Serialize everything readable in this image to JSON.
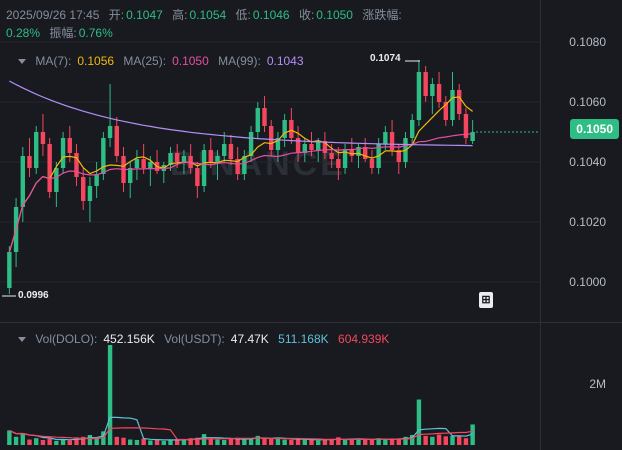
{
  "header": {
    "datetime": "2025/09/26 17:45",
    "open_label": "开:",
    "open": "0.1047",
    "high_label": "高:",
    "high": "0.1054",
    "low_label": "低:",
    "low": "0.1046",
    "close_label": "收:",
    "close": "0.1050",
    "change_label": "涨跌幅:",
    "change": "0.28%",
    "amplitude_label": "振幅:",
    "amplitude": "0.76%"
  },
  "ma": {
    "ma7_label": "MA(7):",
    "ma7": "0.1056",
    "ma25_label": "MA(25):",
    "ma25": "0.1050",
    "ma99_label": "MA(99):",
    "ma99": "0.1043"
  },
  "vol": {
    "dolo_label": "Vol(DOLO):",
    "dolo": "452.156K",
    "usdt_label": "Vol(USDT):",
    "usdt": "47.47K",
    "ma5": "511.168K",
    "ma10": "604.939K",
    "axis_label": "2M"
  },
  "price_axis": [
    "0.1080",
    "0.1060",
    "0.1040",
    "0.1020",
    "0.1000"
  ],
  "current_price": "0.1050",
  "annotations": {
    "high": "0.1074",
    "low": "0.0996"
  },
  "watermark": "BINANCE",
  "colors": {
    "up": "#2ebd85",
    "down": "#f6465d",
    "ma7": "#f0b90b",
    "ma25": "#e64ea3",
    "ma99": "#b58ef8",
    "vol_ma5": "#5dc1d8",
    "vol_ma10": "#f6465d"
  },
  "chart_data": {
    "type": "candlestick",
    "series": [
      {
        "name": "candles",
        "values": [
          [
            0.0998,
            0.1012,
            0.0996,
            0.101
          ],
          [
            0.101,
            0.1028,
            0.1005,
            0.1025
          ],
          [
            0.1025,
            0.1045,
            0.102,
            0.1042
          ],
          [
            0.1042,
            0.1048,
            0.1035,
            0.1038
          ],
          [
            0.1038,
            0.1052,
            0.1036,
            0.105
          ],
          [
            0.105,
            0.1056,
            0.1042,
            0.1046
          ],
          [
            0.1046,
            0.1048,
            0.1028,
            0.103
          ],
          [
            0.103,
            0.104,
            0.1025,
            0.1038
          ],
          [
            0.1038,
            0.105,
            0.1036,
            0.1048
          ],
          [
            0.1048,
            0.1052,
            0.104,
            0.1043
          ],
          [
            0.1043,
            0.1046,
            0.1032,
            0.1035
          ],
          [
            0.1035,
            0.1038,
            0.1024,
            0.1027
          ],
          [
            0.1027,
            0.1035,
            0.102,
            0.1032
          ],
          [
            0.1032,
            0.104,
            0.1028,
            0.1036
          ],
          [
            0.1036,
            0.105,
            0.1034,
            0.1048
          ],
          [
            0.1048,
            0.1066,
            0.1045,
            0.1052
          ],
          [
            0.1052,
            0.1055,
            0.104,
            0.1042
          ],
          [
            0.1042,
            0.1045,
            0.103,
            0.1033
          ],
          [
            0.1033,
            0.104,
            0.1028,
            0.1038
          ],
          [
            0.1038,
            0.1044,
            0.1034,
            0.1041
          ],
          [
            0.1041,
            0.1046,
            0.1036,
            0.1038
          ],
          [
            0.1038,
            0.1042,
            0.1032,
            0.104
          ],
          [
            0.104,
            0.1044,
            0.1036,
            0.1037
          ],
          [
            0.1037,
            0.104,
            0.1033,
            0.1039
          ],
          [
            0.1039,
            0.1045,
            0.1037,
            0.1043
          ],
          [
            0.1043,
            0.1046,
            0.1038,
            0.104
          ],
          [
            0.104,
            0.1044,
            0.1036,
            0.1042
          ],
          [
            0.1042,
            0.1046,
            0.1036,
            0.1038
          ],
          [
            0.1038,
            0.104,
            0.1028,
            0.1032
          ],
          [
            0.1032,
            0.1046,
            0.103,
            0.1044
          ],
          [
            0.1044,
            0.1048,
            0.1038,
            0.104
          ],
          [
            0.104,
            0.1044,
            0.1034,
            0.1042
          ],
          [
            0.1042,
            0.105,
            0.104,
            0.1046
          ],
          [
            0.1046,
            0.1049,
            0.1039,
            0.1041
          ],
          [
            0.1041,
            0.1045,
            0.1034,
            0.1036
          ],
          [
            0.1036,
            0.1044,
            0.1034,
            0.1042
          ],
          [
            0.1042,
            0.1052,
            0.104,
            0.105
          ],
          [
            0.105,
            0.106,
            0.1048,
            0.1058
          ],
          [
            0.1058,
            0.1062,
            0.105,
            0.1052
          ],
          [
            0.1052,
            0.1054,
            0.1042,
            0.1044
          ],
          [
            0.1044,
            0.105,
            0.104,
            0.1048
          ],
          [
            0.1048,
            0.1056,
            0.1045,
            0.1054
          ],
          [
            0.1054,
            0.1058,
            0.1046,
            0.1048
          ],
          [
            0.1048,
            0.1052,
            0.104,
            0.1043
          ],
          [
            0.1043,
            0.1048,
            0.104,
            0.1046
          ],
          [
            0.1046,
            0.105,
            0.1042,
            0.1044
          ],
          [
            0.1044,
            0.1048,
            0.104,
            0.1047
          ],
          [
            0.1047,
            0.105,
            0.1041,
            0.1043
          ],
          [
            0.1043,
            0.1046,
            0.1038,
            0.1041
          ],
          [
            0.1041,
            0.1045,
            0.1034,
            0.1038
          ],
          [
            0.1038,
            0.1046,
            0.1036,
            0.1044
          ],
          [
            0.1044,
            0.1048,
            0.104,
            0.1042
          ],
          [
            0.1042,
            0.1046,
            0.1038,
            0.1045
          ],
          [
            0.1045,
            0.1048,
            0.104,
            0.1041
          ],
          [
            0.1041,
            0.1044,
            0.1036,
            0.1038
          ],
          [
            0.1038,
            0.1048,
            0.1036,
            0.1046
          ],
          [
            0.1046,
            0.1052,
            0.1044,
            0.105
          ],
          [
            0.105,
            0.1054,
            0.1042,
            0.1044
          ],
          [
            0.1044,
            0.1046,
            0.1036,
            0.104
          ],
          [
            0.104,
            0.105,
            0.1038,
            0.1048
          ],
          [
            0.1048,
            0.1056,
            0.1046,
            0.1054
          ],
          [
            0.1054,
            0.1074,
            0.1052,
            0.107
          ],
          [
            0.107,
            0.1072,
            0.106,
            0.1062
          ],
          [
            0.1062,
            0.1068,
            0.1056,
            0.1066
          ],
          [
            0.1066,
            0.107,
            0.1058,
            0.106
          ],
          [
            0.106,
            0.1062,
            0.1052,
            0.1054
          ],
          [
            0.1054,
            0.107,
            0.1052,
            0.1064
          ],
          [
            0.1064,
            0.1066,
            0.1054,
            0.1056
          ],
          [
            0.1056,
            0.1058,
            0.1046,
            0.1048
          ],
          [
            0.1047,
            0.1054,
            0.1046,
            0.105
          ]
        ]
      },
      {
        "name": "volume",
        "values": [
          320,
          180,
          260,
          120,
          150,
          110,
          140,
          90,
          130,
          100,
          170,
          180,
          220,
          140,
          300,
          2200,
          180,
          160,
          120,
          110,
          140,
          100,
          120,
          90,
          110,
          130,
          120,
          150,
          160,
          240,
          130,
          120,
          110,
          140,
          160,
          120,
          150,
          200,
          140,
          130,
          160,
          120,
          110,
          130,
          120,
          110,
          100,
          120,
          130,
          170,
          110,
          120,
          140,
          110,
          120,
          150,
          130,
          120,
          140,
          180,
          220,
          1000,
          200,
          180,
          230,
          190,
          200,
          210,
          150,
          452
        ]
      }
    ],
    "ylim": [
      0.099,
      0.1085
    ]
  }
}
